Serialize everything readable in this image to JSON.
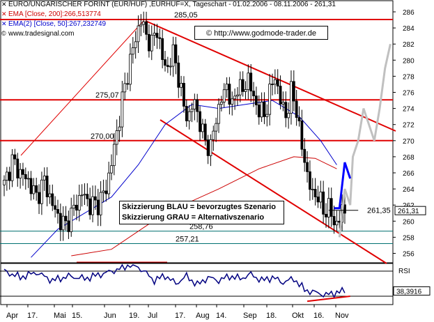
{
  "header": {
    "line1": "EURO/UNGARISCHER FORINT (EUR/HUF) ,EURHUF=X, Tageschart - 01.02.2006 - 08.11.2006 - 261,31",
    "line2": "EMA [Close, 200]:266,513774",
    "line3": "EMA(2) [Close, 50]:267,232749",
    "line4": "www.tradesignal.com"
  },
  "copyright": "© http://www.godmode-trader.de",
  "scenario": {
    "blue": "Skizzierung BLAU = bevorzugtes Szenario",
    "grey": "Skizzierung GRAU = Alternativszenario"
  },
  "colors": {
    "resistance": "#e00000",
    "support": "#007070",
    "ema200": "#cc0000",
    "ema50": "#0000cc",
    "scenario_blue": "#0000ff",
    "scenario_grey": "#c0c0c0",
    "rsi": "#000080"
  },
  "chart_data": {
    "type": "candlestick",
    "ylim": [
      255,
      287
    ],
    "y_ticks": [
      256,
      258,
      260,
      262,
      264,
      266,
      268,
      270,
      272,
      274,
      276,
      278,
      280,
      282,
      284,
      286
    ],
    "x_ticks": [
      "Apr",
      "17.",
      "Mai",
      "15.",
      "Jun",
      "19.",
      "Jul",
      "17.",
      "Aug",
      "14.",
      "Sep",
      "18.",
      "Okt",
      "16.",
      "Nov"
    ],
    "price_path": [
      [
        0,
        264.5
      ],
      [
        3,
        267.5
      ],
      [
        6,
        266
      ],
      [
        9,
        265
      ],
      [
        12,
        263
      ],
      [
        15,
        265
      ],
      [
        18,
        262
      ],
      [
        21,
        260
      ],
      [
        23,
        259.5
      ],
      [
        26,
        261.5
      ],
      [
        29,
        263.5
      ],
      [
        32,
        262
      ],
      [
        35,
        262.2
      ],
      [
        38,
        264
      ],
      [
        41,
        269
      ],
      [
        44,
        275
      ],
      [
        47,
        280
      ],
      [
        50,
        284
      ],
      [
        51,
        285.05
      ],
      [
        53,
        283
      ],
      [
        55,
        282
      ],
      [
        57,
        284
      ],
      [
        59,
        280
      ],
      [
        61,
        279
      ],
      [
        63,
        281
      ],
      [
        65,
        278
      ],
      [
        67,
        274
      ],
      [
        69,
        273
      ],
      [
        71,
        275
      ],
      [
        73,
        272
      ],
      [
        75,
        270
      ],
      [
        77,
        269
      ],
      [
        79,
        273
      ],
      [
        81,
        275
      ],
      [
        83,
        277
      ],
      [
        85,
        274
      ],
      [
        87,
        277
      ],
      [
        89,
        276
      ],
      [
        91,
        278
      ],
      [
        93,
        275
      ],
      [
        95,
        274
      ],
      [
        97,
        273
      ],
      [
        99,
        276
      ],
      [
        101,
        278
      ],
      [
        103,
        275
      ],
      [
        105,
        273
      ],
      [
        107,
        276
      ],
      [
        109,
        274
      ],
      [
        111,
        269
      ],
      [
        113,
        266
      ],
      [
        115,
        263
      ],
      [
        117,
        263.5
      ],
      [
        119,
        261
      ],
      [
        121,
        262
      ],
      [
        123,
        259.5
      ],
      [
        125,
        260.5
      ],
      [
        127,
        261.31
      ]
    ],
    "ema50": [
      [
        10,
        255.5
      ],
      [
        20,
        259
      ],
      [
        30,
        261
      ],
      [
        40,
        263
      ],
      [
        50,
        267
      ],
      [
        60,
        272
      ],
      [
        70,
        274.5
      ],
      [
        80,
        274
      ],
      [
        90,
        274.5
      ],
      [
        100,
        275
      ],
      [
        110,
        273
      ],
      [
        118,
        270
      ],
      [
        124,
        267
      ]
    ],
    "ema200": [
      [
        25,
        255.7
      ],
      [
        40,
        256.5
      ],
      [
        60,
        261
      ],
      [
        80,
        264
      ],
      [
        95,
        266.5
      ],
      [
        108,
        268
      ],
      [
        116,
        267.8
      ],
      [
        124,
        266.5
      ]
    ],
    "horizontal_levels": [
      {
        "value": 285.05,
        "label": "285,05",
        "color": "#e00000"
      },
      {
        "value": 275.07,
        "label": "275,07",
        "color": "#e00000"
      },
      {
        "value": 270.0,
        "label": "270,00",
        "color": "#e00000"
      },
      {
        "value": 258.76,
        "label": "258,76",
        "color": "#007070"
      },
      {
        "value": 257.21,
        "label": "257,21",
        "color": "#007070"
      }
    ],
    "price_marker": {
      "value": 261.35,
      "label": "261,35"
    },
    "last_price": {
      "value": 261.31,
      "label": "261,31"
    },
    "scenario_blue_path": [
      [
        123,
        261.6
      ],
      [
        125,
        261.6
      ],
      [
        127,
        267.3
      ],
      [
        129,
        265.3
      ]
    ],
    "scenario_grey_path": [
      [
        125,
        258
      ],
      [
        127,
        264
      ],
      [
        129,
        262
      ],
      [
        130,
        268
      ],
      [
        132,
        270
      ],
      [
        134,
        274
      ],
      [
        136,
        272
      ],
      [
        138,
        270
      ],
      [
        140,
        274
      ],
      [
        142,
        279
      ],
      [
        144,
        282
      ]
    ],
    "rsi": {
      "label": "RSI",
      "last_label": "38,3916",
      "last": 38.3916,
      "ylim": [
        20,
        80
      ],
      "path": [
        [
          0,
          70
        ],
        [
          6,
          60
        ],
        [
          12,
          68
        ],
        [
          18,
          55
        ],
        [
          24,
          62
        ],
        [
          30,
          58
        ],
        [
          36,
          65
        ],
        [
          42,
          72
        ],
        [
          48,
          82
        ],
        [
          52,
          70
        ],
        [
          56,
          55
        ],
        [
          60,
          63
        ],
        [
          64,
          50
        ],
        [
          68,
          62
        ],
        [
          72,
          48
        ],
        [
          76,
          60
        ],
        [
          80,
          55
        ],
        [
          84,
          62
        ],
        [
          88,
          58
        ],
        [
          92,
          65
        ],
        [
          96,
          55
        ],
        [
          100,
          60
        ],
        [
          104,
          52
        ],
        [
          108,
          58
        ],
        [
          112,
          40
        ],
        [
          116,
          36
        ],
        [
          120,
          32
        ],
        [
          124,
          36
        ],
        [
          127,
          38.4
        ]
      ]
    }
  }
}
